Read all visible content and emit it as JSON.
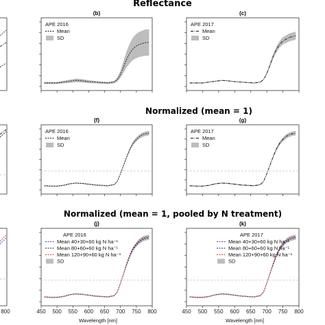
{
  "chart_data": {
    "type": "line",
    "row_titles": [
      "Reflectance",
      "Normalized (mean = 1)",
      "Normalized (mean = 1, pooled by N treatment)"
    ],
    "x_ticks": [
      450,
      500,
      550,
      600,
      650,
      700,
      750,
      800
    ],
    "xlim": [
      450,
      800
    ],
    "xlabel": "Wavelength [nm]",
    "panels": [
      {
        "label": "(b)",
        "row": 0,
        "col": 1,
        "legend_title": "APE 2016",
        "legend": [
          "Mean",
          "SD"
        ]
      },
      {
        "label": "(c)",
        "row": 0,
        "col": 2,
        "legend_title": "APE 2017",
        "legend": [
          "Mean",
          "SD"
        ]
      },
      {
        "label": "(f)",
        "row": 1,
        "col": 1,
        "legend_title": "APE 2016",
        "legend": [
          "Mean",
          "SD"
        ]
      },
      {
        "label": "(g)",
        "row": 1,
        "col": 2,
        "legend_title": "APE 2017",
        "legend": [
          "Mean",
          "SD"
        ]
      },
      {
        "label": "(j)",
        "row": 2,
        "col": 1,
        "legend_title": "APE 2016",
        "legend": [
          "Mean  40+30+60 kg N ha⁻¹",
          "Mean  80+60+60 kg N ha⁻¹",
          "Mean  120+90+60 kg N ha⁻¹",
          "SD"
        ]
      },
      {
        "label": "(k)",
        "row": 2,
        "col": 2,
        "legend_title": "APE 2017",
        "legend": [
          "Mean  40+30+60 kg N ha⁻¹",
          "Mean  80+60+60 kg N ha⁻¹",
          "Mean  120+90+60 kg N ha⁻¹",
          "SD"
        ]
      }
    ],
    "series_colors": [
      "#3b3bd0",
      "#222222",
      "#cc3333"
    ],
    "wavelength": [
      460,
      480,
      500,
      520,
      540,
      560,
      580,
      600,
      620,
      640,
      660,
      680,
      690,
      700,
      710,
      720,
      730,
      740,
      750,
      760,
      770,
      780,
      790
    ],
    "reflectance_2016": {
      "mean": [
        0.04,
        0.04,
        0.04,
        0.05,
        0.06,
        0.07,
        0.065,
        0.055,
        0.05,
        0.045,
        0.04,
        0.05,
        0.08,
        0.14,
        0.23,
        0.32,
        0.39,
        0.44,
        0.47,
        0.49,
        0.5,
        0.51,
        0.51
      ],
      "sd_rel": 0.3
    },
    "reflectance_2017": {
      "mean": [
        0.04,
        0.04,
        0.04,
        0.05,
        0.06,
        0.07,
        0.065,
        0.055,
        0.05,
        0.045,
        0.04,
        0.05,
        0.08,
        0.15,
        0.25,
        0.35,
        0.43,
        0.49,
        0.53,
        0.55,
        0.57,
        0.58,
        0.59
      ],
      "sd_rel": 0.08
    },
    "normalized_mean": [
      0.22,
      0.2,
      0.2,
      0.24,
      0.32,
      0.36,
      0.34,
      0.3,
      0.26,
      0.24,
      0.22,
      0.28,
      0.45,
      0.85,
      1.3,
      1.75,
      2.15,
      2.45,
      2.65,
      2.8,
      2.9,
      2.95,
      2.98
    ],
    "normalized_ylim": [
      0,
      3.2
    ],
    "reflectance_ylim": [
      0,
      0.75
    ]
  }
}
